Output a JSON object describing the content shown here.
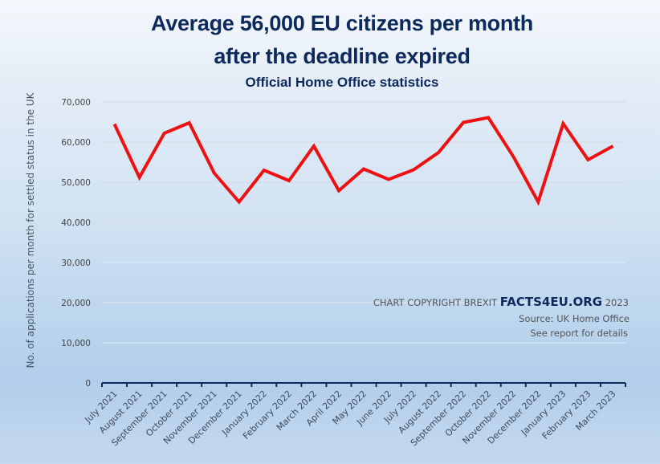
{
  "header": {
    "title_line1": "Average 56,000 EU citizens per month",
    "title_line2": "after the deadline expired",
    "subtitle": "Official Home Office statistics"
  },
  "watermark": {
    "copyright_prefix": "CHART COPYRIGHT BREXIT ",
    "brand": "FACTS4EU.ORG",
    "year": " 2023",
    "source": "Source: UK Home Office",
    "details": "See report for details"
  },
  "colors": {
    "line": "#ee1111",
    "title": "#0d2a5c",
    "axis": "#0d2a5c"
  },
  "chart_data": {
    "type": "line",
    "title": "Average 56,000 EU citizens per month after the deadline expired",
    "subtitle": "Official Home Office statistics",
    "xlabel": "",
    "ylabel": "No. of applications per month for settled status in the UK",
    "ylim": [
      0,
      70000
    ],
    "yticks": [
      0,
      10000,
      20000,
      30000,
      40000,
      50000,
      60000,
      70000
    ],
    "ytick_labels": [
      "0",
      "10,000",
      "20,000",
      "30,000",
      "40,000",
      "50,000",
      "60,000",
      "70,000"
    ],
    "grid": true,
    "legend": "none",
    "categories": [
      "July 2021",
      "August 2021",
      "September 2021",
      "October 2021",
      "November 2021",
      "December 2021",
      "January 2022",
      "February 2022",
      "March 2022",
      "April 2022",
      "May 2022",
      "June 2022",
      "July 2022",
      "August 2022",
      "September 2022",
      "October 2022",
      "November 2022",
      "December 2022",
      "January 2023",
      "February 2023",
      "March 2023"
    ],
    "series": [
      {
        "name": "Applications per month",
        "values": [
          64500,
          51200,
          62200,
          64800,
          52300,
          45100,
          53000,
          50400,
          59000,
          47900,
          53300,
          50700,
          53100,
          57400,
          64900,
          66100,
          56400,
          45100,
          64600,
          55600,
          59000
        ]
      }
    ],
    "annotations": [
      "CHART COPYRIGHT BREXIT FACTS4EU.ORG 2023",
      "Source: UK Home Office",
      "See report for details"
    ]
  }
}
